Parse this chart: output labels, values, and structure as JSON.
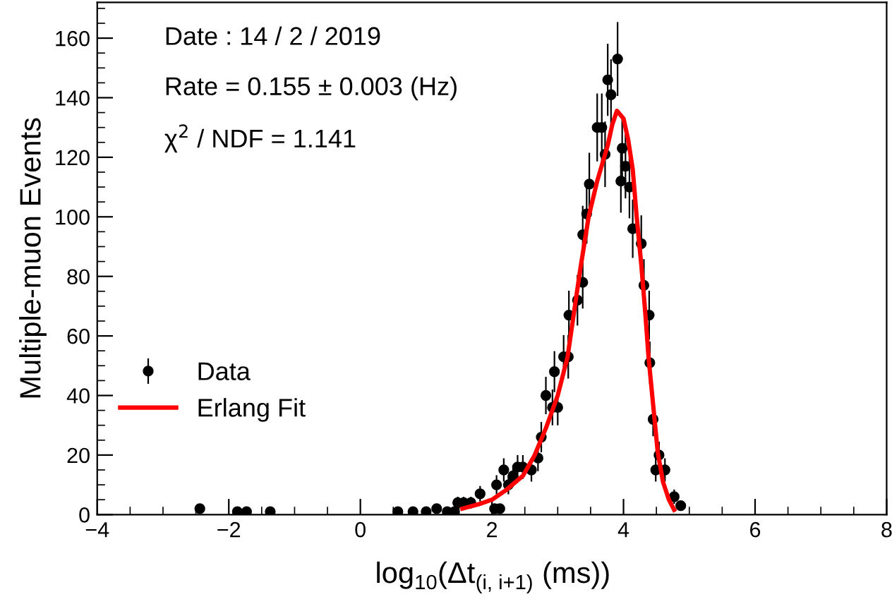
{
  "chart_data": {
    "type": "scatter",
    "xlabel": "log$_{10}$(Δt$_{(i, i+1)}$ (ms))",
    "ylabel": "Multiple-muon Events",
    "xlim": [
      -4,
      8
    ],
    "ylim": [
      0,
      172
    ],
    "xticks": [
      {
        "value": -4,
        "label": "−4"
      },
      {
        "value": -2,
        "label": "−2"
      },
      0,
      2,
      4,
      6,
      8
    ],
    "yticks": [
      0,
      20,
      40,
      60,
      80,
      100,
      120,
      140,
      160
    ],
    "legend": "left",
    "grid": false,
    "annotations": [
      "Date : 14 / 2 / 2019",
      "Rate = 0.155 ± 0.003 (Hz)",
      "χ$^{2}$ / NDF = 1.141"
    ],
    "series": [
      {
        "name": "Data",
        "marker": "circle",
        "color": "#000000",
        "x": [
          -2.44,
          -1.87,
          -1.73,
          -1.37,
          0.57,
          0.8,
          1.0,
          1.16,
          1.32,
          1.43,
          1.48,
          1.57,
          1.68,
          1.82,
          2.04,
          2.07,
          2.12,
          2.18,
          2.25,
          2.32,
          2.39,
          2.47,
          2.6,
          2.7,
          2.75,
          2.82,
          2.92,
          2.95,
          3.0,
          3.09,
          3.16,
          3.17,
          3.3,
          3.38,
          3.38,
          3.44,
          3.48,
          3.6,
          3.67,
          3.72,
          3.76,
          3.81,
          3.91,
          3.96,
          3.98,
          4.03,
          4.09,
          4.14,
          4.27,
          4.31,
          4.39,
          4.4,
          4.45,
          4.49,
          4.54,
          4.63,
          4.77,
          4.87
        ],
        "values": [
          2,
          1,
          1,
          1,
          1,
          1,
          1,
          2,
          1,
          1,
          4,
          4,
          4,
          7,
          2,
          10,
          2,
          15,
          10,
          13,
          16,
          16,
          15,
          19,
          26,
          40,
          36,
          48,
          36,
          53,
          53,
          67,
          72,
          94,
          78,
          101,
          111,
          130,
          130,
          121,
          146,
          141,
          153,
          112,
          123,
          117,
          110,
          96,
          91,
          77,
          67,
          51,
          32,
          15,
          20,
          15,
          6,
          3
        ],
        "errors": [
          1.4,
          1,
          1,
          1,
          1,
          1,
          1,
          1.4,
          1,
          1,
          2,
          2,
          2,
          2.6,
          1.4,
          3.2,
          1.4,
          3.9,
          3.2,
          3.6,
          4,
          4,
          3.9,
          4.4,
          5.1,
          6.3,
          6,
          6.9,
          6,
          7.3,
          7.3,
          8.2,
          8.5,
          9.7,
          8.8,
          10,
          10.5,
          11.4,
          11.4,
          11,
          12.1,
          11.9,
          12.4,
          10.6,
          11.1,
          10.8,
          10.5,
          9.8,
          9.5,
          8.8,
          8.2,
          7.1,
          5.7,
          3.9,
          4.5,
          3.9,
          2.4,
          1.7
        ]
      },
      {
        "name": "Erlang Fit",
        "type": "line",
        "marker": "none",
        "line_style": "solid",
        "color": "#ff0000",
        "x": [
          1.55,
          1.8,
          2.0,
          2.2,
          2.47,
          2.65,
          2.82,
          3.0,
          3.15,
          3.34,
          3.47,
          3.6,
          3.76,
          3.83,
          3.9,
          4.0,
          4.07,
          4.14,
          4.2,
          4.27,
          4.33,
          4.38,
          4.45,
          4.52,
          4.6,
          4.69,
          4.77
        ],
        "values": [
          2,
          3.5,
          5,
          8,
          13,
          20,
          29,
          40,
          53,
          82,
          100,
          112,
          124,
          131,
          135.6,
          133,
          126,
          116,
          100,
          84,
          68,
          53,
          37,
          21,
          11,
          5,
          1.6
        ]
      }
    ]
  }
}
